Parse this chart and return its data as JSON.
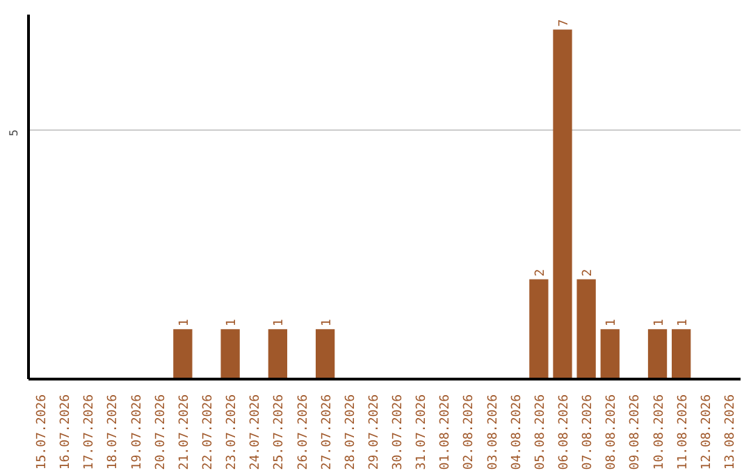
{
  "chart_data": {
    "type": "bar",
    "categories": [
      "15.07.2026",
      "16.07.2026",
      "17.07.2026",
      "18.07.2026",
      "19.07.2026",
      "20.07.2026",
      "21.07.2026",
      "22.07.2026",
      "23.07.2026",
      "24.07.2026",
      "25.07.2026",
      "26.07.2026",
      "27.07.2026",
      "28.07.2026",
      "29.07.2026",
      "30.07.2026",
      "31.07.2026",
      "01.08.2026",
      "02.08.2026",
      "03.08.2026",
      "04.08.2026",
      "05.08.2026",
      "06.08.2026",
      "07.08.2026",
      "08.08.2026",
      "09.08.2026",
      "10.08.2026",
      "11.08.2026",
      "12.08.2026",
      "13.08.2026"
    ],
    "values": [
      0,
      0,
      0,
      0,
      0,
      0,
      1,
      0,
      1,
      0,
      1,
      0,
      1,
      0,
      0,
      0,
      0,
      0,
      0,
      0,
      0,
      2,
      7,
      2,
      1,
      0,
      1,
      1,
      0,
      0
    ],
    "value_labels": [
      null,
      null,
      null,
      null,
      null,
      null,
      "1",
      null,
      "1",
      null,
      "1",
      null,
      "1",
      null,
      null,
      null,
      null,
      null,
      null,
      null,
      null,
      "2",
      "7",
      "2",
      "1",
      null,
      "1",
      "1",
      null,
      null
    ],
    "color": "#a0582a",
    "ylim": [
      0,
      7.3
    ],
    "yticks": [
      5
    ],
    "grid": "y"
  }
}
